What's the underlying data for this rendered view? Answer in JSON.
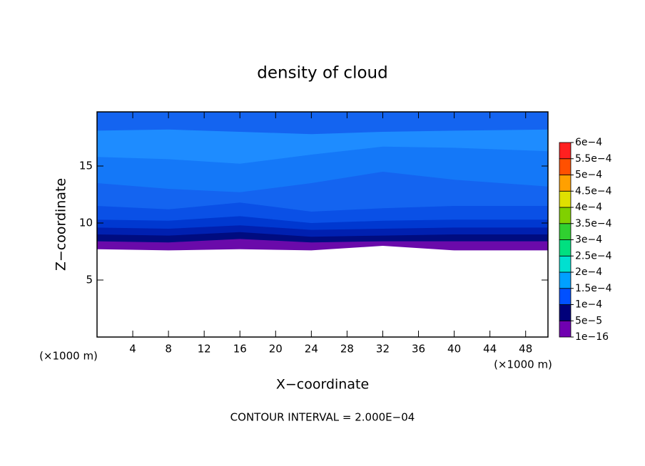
{
  "chart_data": {
    "type": "contour",
    "title": "density of cloud",
    "xlabel": "X−coordinate",
    "ylabel": "Z−coordinate",
    "x_unit_left": "(×1000 m)",
    "x_unit_right": "(×1000 m)",
    "footnote": "CONTOUR INTERVAL = 2.000E−04",
    "xlim": [
      0,
      50.5
    ],
    "ylim": [
      0,
      19.75
    ],
    "xticks": [
      4,
      8,
      12,
      16,
      20,
      24,
      28,
      32,
      36,
      40,
      44,
      48
    ],
    "yticks": [
      5,
      10,
      15
    ],
    "x": [
      0,
      8,
      16,
      24,
      32,
      40,
      50.5
    ],
    "layers": [
      {
        "color": "#1464f0",
        "top": [
          19.75,
          19.75,
          19.75,
          19.75,
          19.75,
          19.75,
          19.75
        ]
      },
      {
        "color": "#1e8cff",
        "top": [
          18.1,
          18.2,
          18.0,
          17.8,
          18.0,
          18.1,
          18.2
        ]
      },
      {
        "color": "#1478f8",
        "top": [
          15.8,
          15.6,
          15.2,
          16.0,
          16.7,
          16.6,
          16.3
        ]
      },
      {
        "color": "#1464f0",
        "top": [
          13.5,
          13.0,
          12.7,
          13.5,
          14.5,
          13.8,
          13.2
        ]
      },
      {
        "color": "#0a50e6",
        "top": [
          11.5,
          11.2,
          11.8,
          11.0,
          11.3,
          11.5,
          11.5
        ]
      },
      {
        "color": "#0038d0",
        "top": [
          10.3,
          10.2,
          10.6,
          10.0,
          10.2,
          10.3,
          10.3
        ]
      },
      {
        "color": "#0020b0",
        "top": [
          9.6,
          9.5,
          9.8,
          9.4,
          9.5,
          9.6,
          9.6
        ]
      },
      {
        "color": "#000c80",
        "top": [
          9.0,
          8.9,
          9.2,
          8.8,
          8.9,
          9.0,
          9.0
        ]
      },
      {
        "color": "#6a0aaa",
        "top": [
          8.4,
          8.3,
          8.6,
          8.3,
          8.4,
          8.4,
          8.4
        ]
      },
      {
        "color": "#ffffff",
        "top": [
          7.7,
          7.6,
          7.7,
          7.6,
          8.0,
          7.6,
          7.6
        ]
      }
    ],
    "colorbar": {
      "levels": [
        {
          "value": 1e-16,
          "label": "1e−16"
        },
        {
          "value": 5e-05,
          "label": "5e−5"
        },
        {
          "value": 0.0001,
          "label": "1e−4"
        },
        {
          "value": 0.00015,
          "label": "1.5e−4"
        },
        {
          "value": 0.0002,
          "label": "2e−4"
        },
        {
          "value": 0.00025,
          "label": "2.5e−4"
        },
        {
          "value": 0.0003,
          "label": "3e−4"
        },
        {
          "value": 0.00035,
          "label": "3.5e−4"
        },
        {
          "value": 0.0004,
          "label": "4e−4"
        },
        {
          "value": 0.00045,
          "label": "4.5e−4"
        },
        {
          "value": 0.0005,
          "label": "5e−4"
        },
        {
          "value": 0.00055,
          "label": "5.5e−4"
        },
        {
          "value": 0.0006,
          "label": "6e−4"
        }
      ],
      "colors": [
        "#7000b0",
        "#00007a",
        "#0050ff",
        "#00a0ff",
        "#00e0d0",
        "#00e080",
        "#30d030",
        "#80d000",
        "#e0e000",
        "#ffa000",
        "#ff5000",
        "#ff2020",
        "#ff8080"
      ]
    }
  }
}
